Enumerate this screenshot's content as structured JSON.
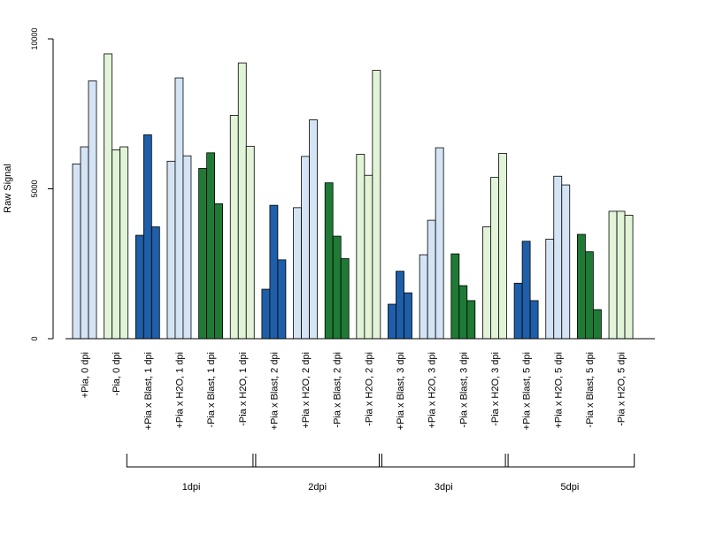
{
  "chart_data": {
    "type": "bar",
    "ylabel": "Raw Signal",
    "ylim": [
      0,
      10000
    ],
    "yticks": [
      "0",
      "5000",
      "10000"
    ],
    "grid": false,
    "colors": {
      "pia_blast": "#1f5ea8",
      "pia_h2o": "#d4e4f5",
      "nopia_blast": "#1e7a35",
      "nopia_h2o": "#e1f4d8"
    },
    "categories": [
      {
        "label": "+Pia, 0 dpi",
        "color": "pia_h2o",
        "values": [
          5830,
          6400,
          8600
        ]
      },
      {
        "label": "-Pia, 0 dpi",
        "color": "nopia_h2o",
        "values": [
          9500,
          6300,
          6400
        ]
      },
      {
        "label": "+Pia x Blast, 1 dpi",
        "color": "pia_blast",
        "values": [
          3450,
          6800,
          3730
        ]
      },
      {
        "label": "+Pia x H2O, 1 dpi",
        "color": "pia_h2o",
        "values": [
          5920,
          8700,
          6100
        ]
      },
      {
        "label": "-Pia x Blast, 1 dpi",
        "color": "nopia_blast",
        "values": [
          5680,
          6200,
          4500
        ]
      },
      {
        "label": "-Pia x H2O, 1 dpi",
        "color": "nopia_h2o",
        "values": [
          7450,
          9200,
          6420
        ]
      },
      {
        "label": "+Pia x Blast, 2 dpi",
        "color": "pia_blast",
        "values": [
          1650,
          4450,
          2630
        ]
      },
      {
        "label": "+Pia x H2O, 2 dpi",
        "color": "pia_h2o",
        "values": [
          4370,
          6080,
          7300
        ]
      },
      {
        "label": "-Pia x Blast, 2 dpi",
        "color": "nopia_blast",
        "values": [
          5200,
          3420,
          2670
        ]
      },
      {
        "label": "-Pia x H2O, 2 dpi",
        "color": "nopia_h2o",
        "values": [
          6150,
          5450,
          8950
        ]
      },
      {
        "label": "+Pia x Blast, 3 dpi",
        "color": "pia_blast",
        "values": [
          1150,
          2250,
          1530
        ]
      },
      {
        "label": "+Pia x H2O, 3 dpi",
        "color": "pia_h2o",
        "values": [
          2800,
          3950,
          6370
        ]
      },
      {
        "label": "-Pia x Blast, 3 dpi",
        "color": "nopia_blast",
        "values": [
          2830,
          1770,
          1270
        ]
      },
      {
        "label": "-Pia x H2O, 3 dpi",
        "color": "nopia_h2o",
        "values": [
          3730,
          5380,
          6180
        ]
      },
      {
        "label": "+Pia x Blast, 5 dpi",
        "color": "pia_blast",
        "values": [
          1850,
          3250,
          1270
        ]
      },
      {
        "label": "+Pia x H2O, 5 dpi",
        "color": "pia_h2o",
        "values": [
          3320,
          5420,
          5130
        ]
      },
      {
        "label": "-Pia x Blast, 5 dpi",
        "color": "nopia_blast",
        "values": [
          3480,
          2900,
          970
        ]
      },
      {
        "label": "-Pia x H2O, 5 dpi",
        "color": "nopia_h2o",
        "values": [
          4250,
          4250,
          4120
        ]
      }
    ],
    "groups": [
      {
        "label": "1dpi",
        "first": 2,
        "last": 5
      },
      {
        "label": "2dpi",
        "first": 6,
        "last": 9
      },
      {
        "label": "3dpi",
        "first": 10,
        "last": 13
      },
      {
        "label": "5dpi",
        "first": 14,
        "last": 17
      }
    ]
  }
}
